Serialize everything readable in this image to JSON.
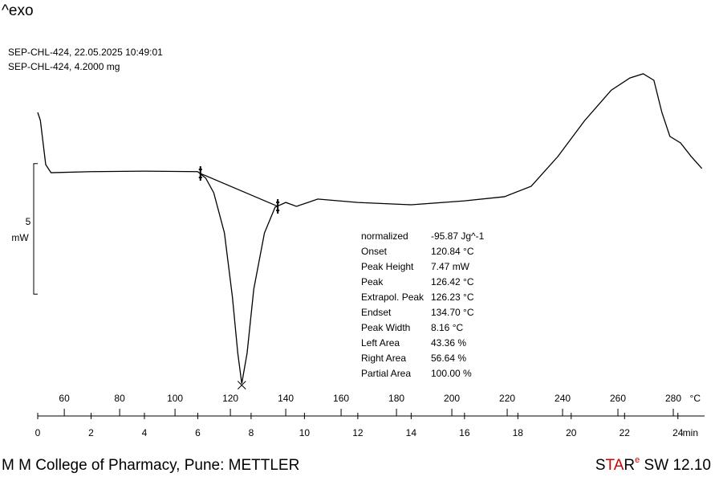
{
  "chart_data": {
    "type": "line",
    "exo_label": "^exo",
    "header": [
      "SEP-CHL-424, 22.05.2025 10:49:01",
      "SEP-CHL-424, 4.2000 mg"
    ],
    "scale_bar": {
      "value": 5,
      "unit": "mW"
    },
    "xlim": [
      0,
      25
    ],
    "xticks": [
      0,
      2,
      4,
      6,
      8,
      10,
      12,
      14,
      16,
      18,
      20,
      22,
      24
    ],
    "x_unit": "min",
    "x2lim": [
      50.4,
      291.3
    ],
    "x2ticks": [
      60,
      80,
      100,
      120,
      140,
      160,
      180,
      200,
      220,
      240,
      260,
      280
    ],
    "x2_unit": "°C",
    "ylim": [
      -8.5,
      4.5
    ],
    "color": "#000000",
    "series": [
      {
        "x": [
          0,
          0.1,
          0.3,
          0.5,
          2,
          4,
          6,
          6.3,
          6.6,
          7,
          7.3,
          7.5,
          7.65,
          7.85,
          8.1,
          8.5,
          8.9,
          9.3,
          9.7,
          10.5,
          12,
          14,
          16,
          17.5,
          18.5,
          19.5,
          20.5,
          21.5,
          22.2,
          22.7,
          23.1,
          23.4,
          23.7,
          24.1,
          24.5,
          24.9
        ],
        "values": [
          2.27,
          1.96,
          0.27,
          -0.04,
          0,
          0.02,
          0,
          -0.25,
          -0.81,
          -2.35,
          -4.81,
          -6.95,
          -8.12,
          -6.95,
          -4.5,
          -2.35,
          -1.36,
          -1.18,
          -1.33,
          -1.05,
          -1.18,
          -1.27,
          -1.12,
          -0.96,
          -0.56,
          0.58,
          1.95,
          3.12,
          3.59,
          3.75,
          3.5,
          2.27,
          1.35,
          1.1,
          0.58,
          0.12
        ]
      }
    ],
    "baseline": {
      "x": [
        6.1,
        9.0
      ],
      "values": [
        -0.07,
        -1.33
      ]
    },
    "results": [
      [
        "normalized",
        "-95.87 Jg^-1"
      ],
      [
        "Onset",
        "120.84 °C"
      ],
      [
        "Peak Height",
        "7.47 mW"
      ],
      [
        "Peak",
        "126.42 °C"
      ],
      [
        "Extrapol. Peak",
        "126.23 °C"
      ],
      [
        "Endset",
        "134.70 °C"
      ],
      [
        "Peak Width",
        "8.16 °C"
      ],
      [
        "Left Area",
        "43.36 %"
      ],
      [
        "Right Area",
        "56.64 %"
      ],
      [
        "Partial Area",
        "100.00 %"
      ]
    ],
    "footer_left": "M M College of Pharmacy, Pune: METTLER",
    "footer_right": [
      "S",
      "TA",
      "R",
      "e",
      " SW 12.10"
    ]
  }
}
